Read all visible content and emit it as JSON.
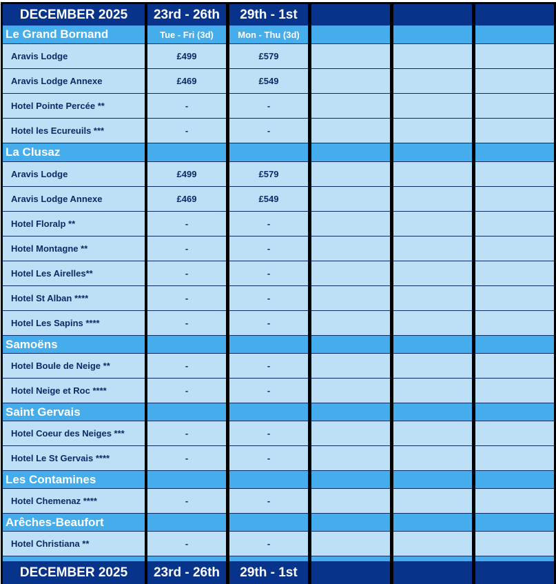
{
  "header": {
    "title": "DECEMBER 2025",
    "periods": [
      {
        "dates": "23rd - 26th",
        "days": "Tue - Fri (3d)"
      },
      {
        "dates": "29th - 1st",
        "days": "Mon - Thu (3d)"
      },
      {
        "dates": "",
        "days": ""
      },
      {
        "dates": "",
        "days": ""
      },
      {
        "dates": "",
        "days": ""
      }
    ]
  },
  "sections": [
    {
      "name": "Le Grand Bornand",
      "hotels": [
        {
          "name": "Aravis Lodge",
          "prices": [
            "£499",
            "£579"
          ]
        },
        {
          "name": "Aravis Lodge Annexe",
          "prices": [
            "£469",
            "£549"
          ]
        },
        {
          "name": "Hotel Pointe Percée **",
          "prices": [
            "-",
            "-"
          ]
        },
        {
          "name": "Hotel les Ecureuils ***",
          "prices": [
            "-",
            "-"
          ]
        }
      ]
    },
    {
      "name": "La Clusaz",
      "hotels": [
        {
          "name": "Aravis Lodge",
          "prices": [
            "£499",
            "£579"
          ]
        },
        {
          "name": "Aravis Lodge Annexe",
          "prices": [
            "£469",
            "£549"
          ]
        },
        {
          "name": "Hotel Floralp **",
          "prices": [
            "-",
            "-"
          ]
        },
        {
          "name": "Hotel Montagne **",
          "prices": [
            "-",
            "-"
          ]
        },
        {
          "name": "Hotel Les Airelles**",
          "prices": [
            "-",
            "-"
          ]
        },
        {
          "name": "Hotel St Alban ****",
          "prices": [
            "-",
            "-"
          ]
        },
        {
          "name": "Hotel Les Sapins ****",
          "prices": [
            "-",
            "-"
          ]
        }
      ]
    },
    {
      "name": "Samoëns",
      "hotels": [
        {
          "name": "Hotel Boule de Neige **",
          "prices": [
            "-",
            "-"
          ]
        },
        {
          "name": "Hotel Neige et Roc ****",
          "prices": [
            "-",
            "-"
          ]
        }
      ]
    },
    {
      "name": "Saint Gervais",
      "hotels": [
        {
          "name": "Hotel Coeur des Neiges ***",
          "prices": [
            "-",
            "-"
          ]
        },
        {
          "name": "Hotel Le St Gervais ****",
          "prices": [
            "-",
            "-"
          ]
        }
      ]
    },
    {
      "name": "Les Contamines",
      "hotels": [
        {
          "name": "Hotel Chemenaz ****",
          "prices": [
            "-",
            "-"
          ]
        }
      ]
    },
    {
      "name": "Arêches-Beaufort",
      "hotels": [
        {
          "name": "Hotel Christiana **",
          "prices": [
            "-",
            "-"
          ]
        }
      ]
    }
  ],
  "colors": {
    "header": "#07338a",
    "section": "#45adec",
    "row": "#bde0f7",
    "text": "#0d2a66"
  }
}
